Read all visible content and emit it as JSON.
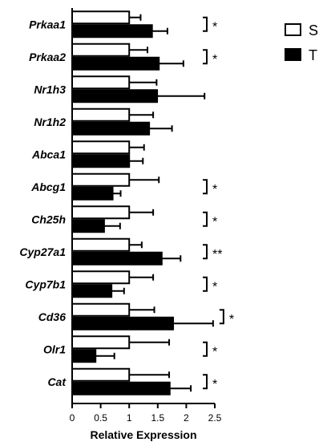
{
  "chart_data": {
    "type": "bar",
    "orientation": "horizontal",
    "categories": [
      "Prkaa1",
      "Prkaa2",
      "Nr1h3",
      "Nr1h2",
      "Abca1",
      "Abcg1",
      "Ch25h",
      "Cyp27a1",
      "Cyp7b1",
      "Cd36",
      "Olr1",
      "Cat"
    ],
    "series": [
      {
        "name": "S",
        "color": "#ffffff",
        "values": [
          1.0,
          1.0,
          1.0,
          1.0,
          1.0,
          1.0,
          1.0,
          1.0,
          1.0,
          1.0,
          1.0,
          1.0
        ],
        "errors": [
          0.2,
          0.32,
          0.48,
          0.42,
          0.26,
          0.52,
          0.42,
          0.22,
          0.42,
          0.44,
          0.7,
          0.7
        ]
      },
      {
        "name": "T",
        "color": "#000000",
        "values": [
          1.4,
          1.52,
          1.49,
          1.35,
          1.0,
          0.71,
          0.56,
          1.57,
          0.69,
          1.77,
          0.41,
          1.71
        ],
        "errors": [
          0.27,
          0.43,
          0.83,
          0.4,
          0.24,
          0.14,
          0.28,
          0.33,
          0.22,
          0.7,
          0.33,
          0.37
        ]
      }
    ],
    "significance": [
      "*",
      "*",
      "",
      "",
      "",
      "*",
      "*",
      "**",
      "*",
      "*",
      "*",
      "*"
    ],
    "xlabel": "Relative Expression",
    "xlim": [
      0,
      2.5
    ],
    "xticks": [
      "0",
      "0.5",
      "1",
      "1.5",
      "2",
      "2.5"
    ],
    "legend": {
      "placement": "top-right",
      "entries": [
        "S",
        "T"
      ]
    }
  }
}
